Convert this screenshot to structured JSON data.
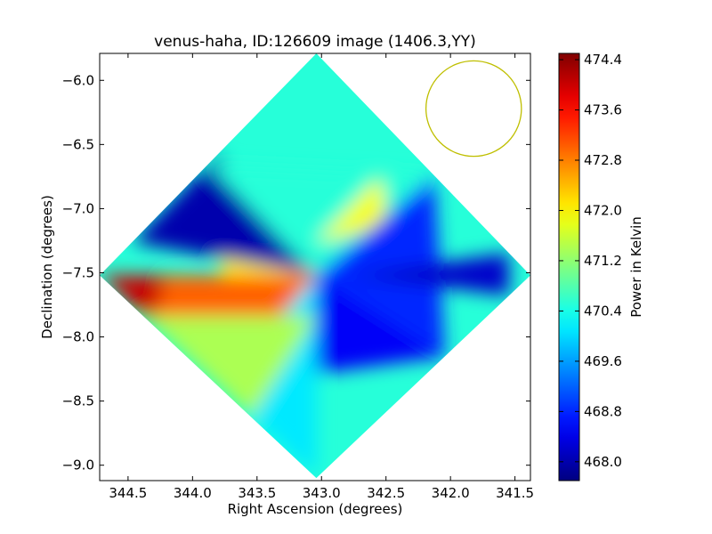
{
  "chart_data": {
    "type": "heatmap",
    "title": "venus-haha, ID:126609 image (1406.3,YY)",
    "xlabel": "Right Ascension (degrees)",
    "ylabel": "Declination (degrees)",
    "xlim": [
      344.72,
      341.38
    ],
    "ylim": [
      -9.12,
      -5.79
    ],
    "x_reversed": true,
    "xticks": [
      344.5,
      344.0,
      343.5,
      343.0,
      342.5,
      342.0,
      341.5
    ],
    "xtick_labels": [
      "344.5",
      "344.0",
      "343.5",
      "343.0",
      "342.5",
      "342.0",
      "341.5"
    ],
    "yticks": [
      -6.0,
      -6.5,
      -7.0,
      -7.5,
      -8.0,
      -8.5,
      -9.0
    ],
    "ytick_labels": [
      "−6.0",
      "−6.5",
      "−7.0",
      "−7.5",
      "−8.0",
      "−8.5",
      "−9.0"
    ],
    "colormap": "jet",
    "colorbar": {
      "label": "Power in Kelvin",
      "min": 467.7,
      "max": 474.5,
      "ticks": [
        474.4,
        473.6,
        472.8,
        472.0,
        471.2,
        470.4,
        469.6,
        468.8,
        468.0
      ],
      "tick_labels": [
        "474.4",
        "473.6",
        "472.8",
        "472.0",
        "471.2",
        "470.4",
        "469.6",
        "468.8",
        "468.0"
      ]
    },
    "map_region": {
      "shape": "diamond",
      "center": [
        343.04,
        -7.52
      ],
      "corners": [
        [
          343.04,
          -5.79
        ],
        [
          341.38,
          -7.52
        ],
        [
          343.04,
          -9.1
        ],
        [
          344.72,
          -7.52
        ]
      ]
    },
    "lobes": [
      {
        "region": "west (high RA)",
        "peak_value": 474.0,
        "typical_value": 472.0
      },
      {
        "region": "north",
        "peak_value": 471.9,
        "typical_value": 470.5
      },
      {
        "region": "east (low RA)",
        "peak_value": 469.6,
        "typical_value": 468.8
      },
      {
        "region": "south",
        "peak_value": 469.2,
        "typical_value": 468.5
      }
    ],
    "beam": {
      "ra": 341.82,
      "dec": -6.22,
      "radius_deg": 0.37,
      "color": "#bfbf00"
    },
    "grid": false,
    "legend": "none"
  }
}
